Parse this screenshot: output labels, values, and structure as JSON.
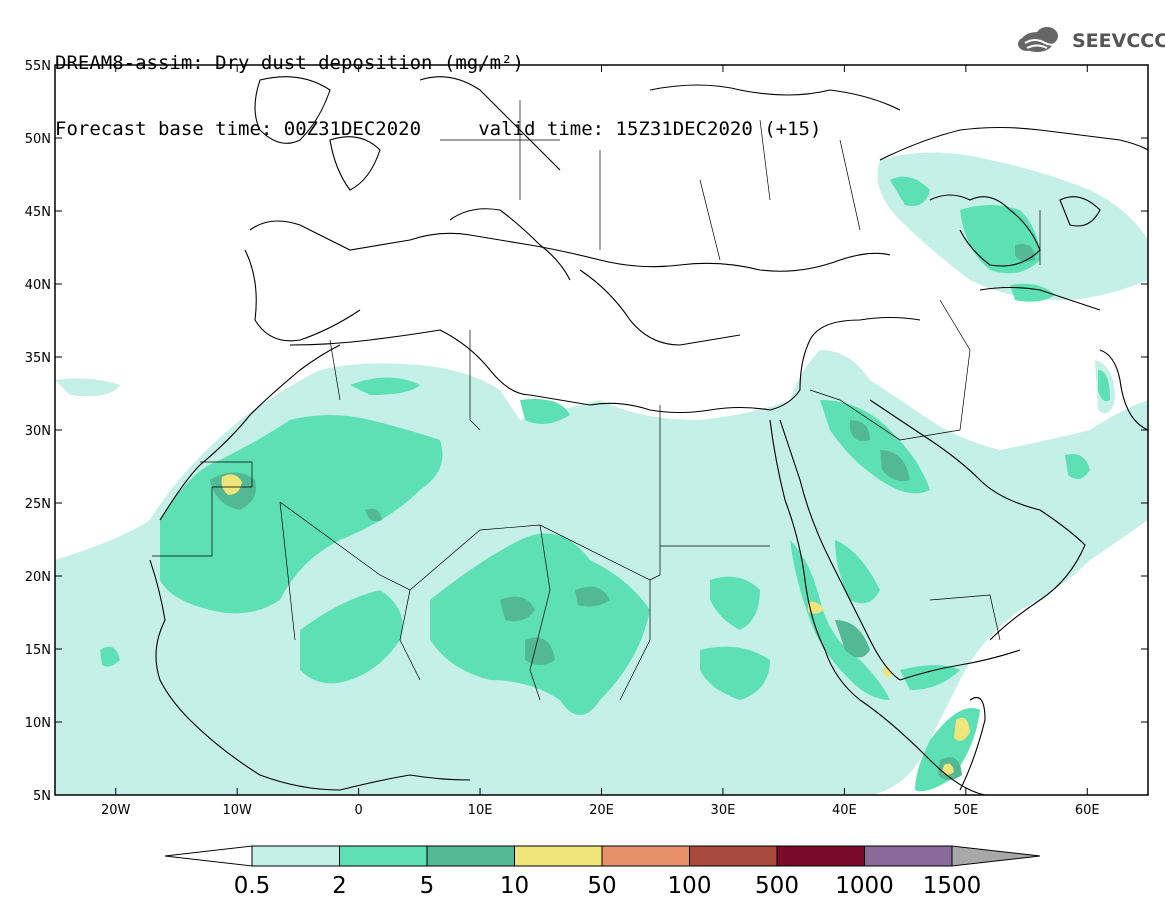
{
  "title": {
    "line1": "DREAM8-assim: Dry dust deposition (mg/m²)",
    "line2": "Forecast base time: 00Z31DEC2020     valid time: 15Z31DEC2020 (+15)"
  },
  "logo": {
    "icon": "cloud-icon",
    "text": "SEEVCCC"
  },
  "map": {
    "lon_range": [
      -25,
      65
    ],
    "lat_range": [
      5,
      55
    ],
    "lat_ticks": [
      {
        "value": 55,
        "label": "55N"
      },
      {
        "value": 50,
        "label": "50N"
      },
      {
        "value": 45,
        "label": "45N"
      },
      {
        "value": 40,
        "label": "40N"
      },
      {
        "value": 35,
        "label": "35N"
      },
      {
        "value": 30,
        "label": "30N"
      },
      {
        "value": 25,
        "label": "25N"
      },
      {
        "value": 20,
        "label": "20N"
      },
      {
        "value": 15,
        "label": "15N"
      },
      {
        "value": 10,
        "label": "10N"
      },
      {
        "value": 5,
        "label": "5N"
      }
    ],
    "lon_ticks": [
      {
        "value": -20,
        "label": "20W"
      },
      {
        "value": -10,
        "label": "10W"
      },
      {
        "value": 0,
        "label": "0"
      },
      {
        "value": 10,
        "label": "10E"
      },
      {
        "value": 20,
        "label": "20E"
      },
      {
        "value": 30,
        "label": "30E"
      },
      {
        "value": 40,
        "label": "40E"
      },
      {
        "value": 50,
        "label": "50E"
      },
      {
        "value": 60,
        "label": "60E"
      }
    ]
  },
  "colorbar": {
    "labels": [
      "0.5",
      "2",
      "5",
      "10",
      "50",
      "100",
      "500",
      "1000",
      "1500"
    ],
    "colors": [
      "#c5f0e8",
      "#5ee0b5",
      "#52b994",
      "#f0e57a",
      "#e8906a",
      "#a84a3e",
      "#7a0a2a",
      "#8a6a9a",
      "#a8a8a8"
    ],
    "underflow_color": "#ffffff"
  },
  "colors": {
    "level1": "#c5f0e8",
    "level2": "#5ee0b5",
    "level3": "#52b994",
    "level4": "#f0e57a"
  }
}
